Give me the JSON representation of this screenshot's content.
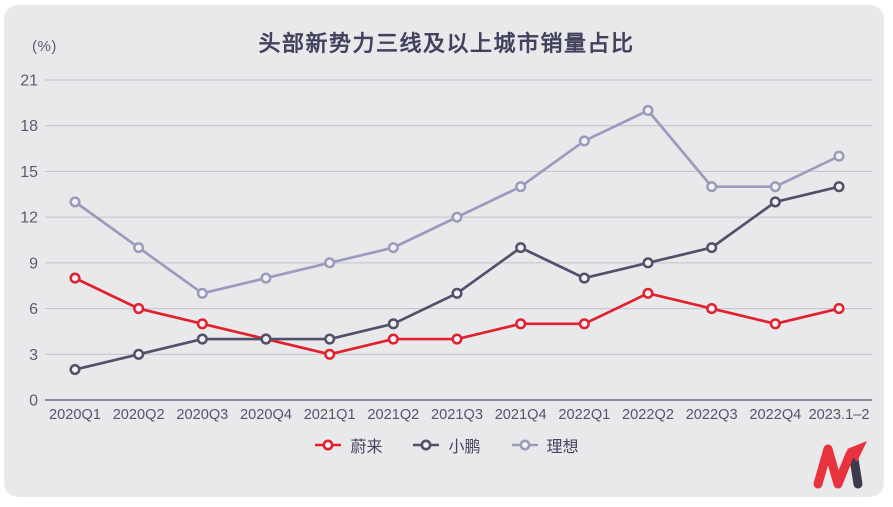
{
  "chart_data": {
    "type": "line",
    "title": "头部新势力三线及以上城市销量占比",
    "unit_label": "(%)",
    "categories": [
      "2020Q1",
      "2020Q2",
      "2020Q3",
      "2020Q4",
      "2021Q1",
      "2021Q2",
      "2021Q3",
      "2021Q4",
      "2022Q1",
      "2022Q2",
      "2022Q3",
      "2022Q4",
      "2023.1–2"
    ],
    "series": [
      {
        "name": "蔚来",
        "color": "#e0212f",
        "values": [
          8,
          6,
          5,
          4,
          3,
          4,
          4,
          5,
          5,
          7,
          6,
          5,
          6
        ]
      },
      {
        "name": "小鹏",
        "color": "#515169",
        "values": [
          2,
          3,
          4,
          4,
          4,
          5,
          7,
          10,
          8,
          9,
          10,
          13,
          14
        ]
      },
      {
        "name": "理想",
        "color": "#9b9bbc",
        "values": [
          13,
          10,
          7,
          8,
          9,
          10,
          12,
          14,
          17,
          19,
          14,
          14,
          16
        ]
      }
    ],
    "ylim": [
      0,
      21
    ],
    "ytick_step": 3,
    "yticks": [
      0,
      3,
      6,
      9,
      12,
      15,
      18,
      21
    ],
    "grid": true,
    "legend_position": "bottom",
    "colors": {
      "grid_line": "#c1c1d0",
      "axis_line": "#6f6f88",
      "marker_fill": "#f1f1f3",
      "tick_label": "#5b5b76",
      "title": "#42425e",
      "card_background": "#e9e9eb",
      "brand_red": "#e8323e",
      "brand_dark": "#3b3b4c"
    }
  }
}
